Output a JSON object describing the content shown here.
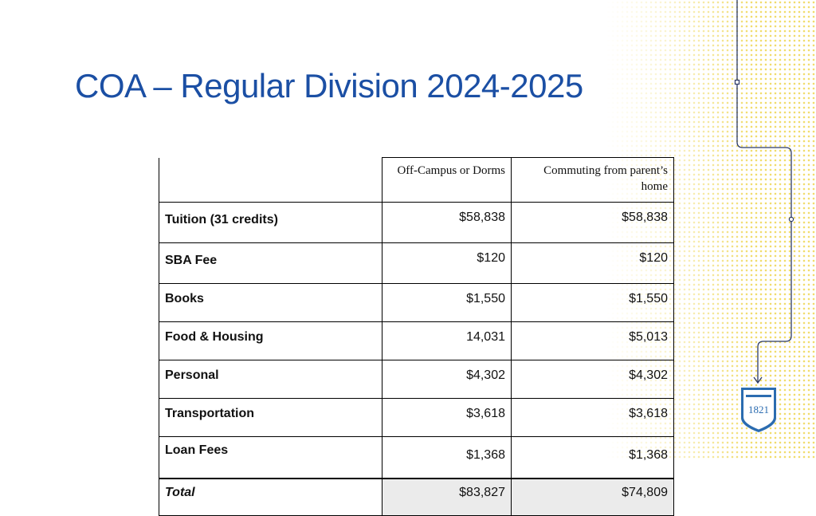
{
  "slide": {
    "title": "COA – Regular Division 2024-2025"
  },
  "table": {
    "headers": [
      "",
      "Off-Campus or Dorms",
      "Commuting from parent’s home"
    ],
    "rows": [
      {
        "label": "Tuition (31 credits)",
        "off_campus": "$58,838",
        "commuting": "$58,838"
      },
      {
        "label": "SBA Fee",
        "off_campus": "$120",
        "commuting": "$120"
      },
      {
        "label": "Books",
        "off_campus": "$1,550",
        "commuting": "$1,550"
      },
      {
        "label": "Food & Housing",
        "off_campus": "14,031",
        "commuting": "$5,013"
      },
      {
        "label": "Personal",
        "off_campus": "$4,302",
        "commuting": "$4,302"
      },
      {
        "label": "Transportation",
        "off_campus": "$3,618",
        "commuting": "$3,618"
      },
      {
        "label": "Loan Fees",
        "off_campus": "$1,368",
        "commuting": "$1,368"
      }
    ],
    "total": {
      "label": "Total",
      "off_campus": "$83,827",
      "commuting": "$74,809"
    }
  },
  "logo": {
    "year": "1821"
  },
  "colors": {
    "title": "#1b4fa4",
    "accent_line": "#2b3a67",
    "logo": "#2b6cb0",
    "dots": "#f1dc6c",
    "total_fill": "#ebebeb"
  }
}
